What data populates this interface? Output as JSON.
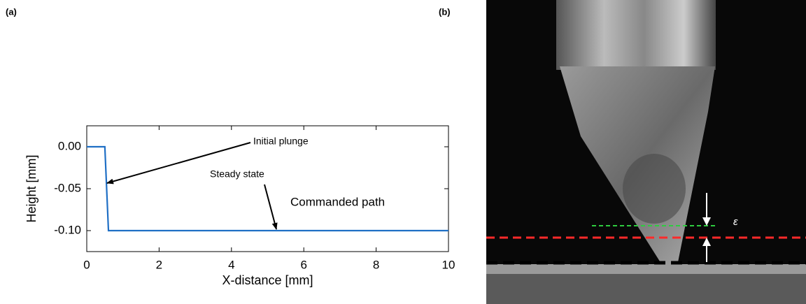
{
  "panel_labels": [
    "(a)",
    "(b)"
  ],
  "photo": {
    "annotation": "ε"
  },
  "chart_data": {
    "type": "line",
    "x_label": "X-distance [mm]",
    "y_label": "Height [mm]",
    "series": [
      {
        "name": "Commanded path",
        "color": "#1f6fc5",
        "x": [
          0,
          0.5,
          0.6,
          10
        ],
        "values": [
          0,
          0,
          -0.1,
          -0.1
        ]
      }
    ],
    "xlim": [
      0,
      10
    ],
    "xticks": [
      0,
      2,
      4,
      6,
      8,
      10
    ],
    "ylim": [
      -0.125,
      0.025
    ],
    "yticks": [
      {
        "value": 0,
        "label": "0.00"
      },
      {
        "value": -0.05,
        "label": "-0.05"
      },
      {
        "value": -0.1,
        "label": "-0.10"
      }
    ],
    "annotations": [
      "Initial plunge",
      "Steady state"
    ]
  }
}
